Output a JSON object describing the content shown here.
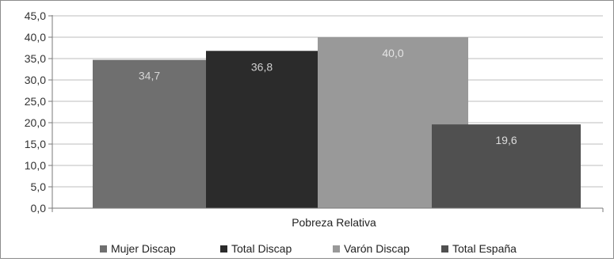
{
  "chart_data": {
    "type": "bar",
    "categories": [
      "Pobreza Relativa"
    ],
    "series": [
      {
        "name": "Mujer Discap",
        "values": [
          34.7
        ],
        "label": "34,7",
        "color": "#6f6f6f",
        "label_color": "#d6d6d6"
      },
      {
        "name": "Total Discap",
        "values": [
          36.8
        ],
        "label": "36,8",
        "color": "#2b2b2b",
        "label_color": "#cfcfcf"
      },
      {
        "name": "Varón Discap",
        "values": [
          40.0
        ],
        "label": "40,0",
        "color": "#999999",
        "label_color": "#e4e4e4"
      },
      {
        "name": "Total España",
        "values": [
          19.6
        ],
        "label": "19,6",
        "color": "#505050",
        "label_color": "#dcdcdc"
      }
    ],
    "ylim": [
      0,
      45
    ],
    "yticks": [
      0,
      5,
      10,
      15,
      20,
      25,
      30,
      35,
      40,
      45
    ],
    "ytick_labels": [
      "0,0",
      "5,0",
      "10,0",
      "15,0",
      "20,0",
      "25,0",
      "30,0",
      "35,0",
      "40,0",
      "45,0"
    ],
    "xlabel": "",
    "ylabel": "",
    "title": "",
    "grid": true,
    "legend": "bottom"
  }
}
